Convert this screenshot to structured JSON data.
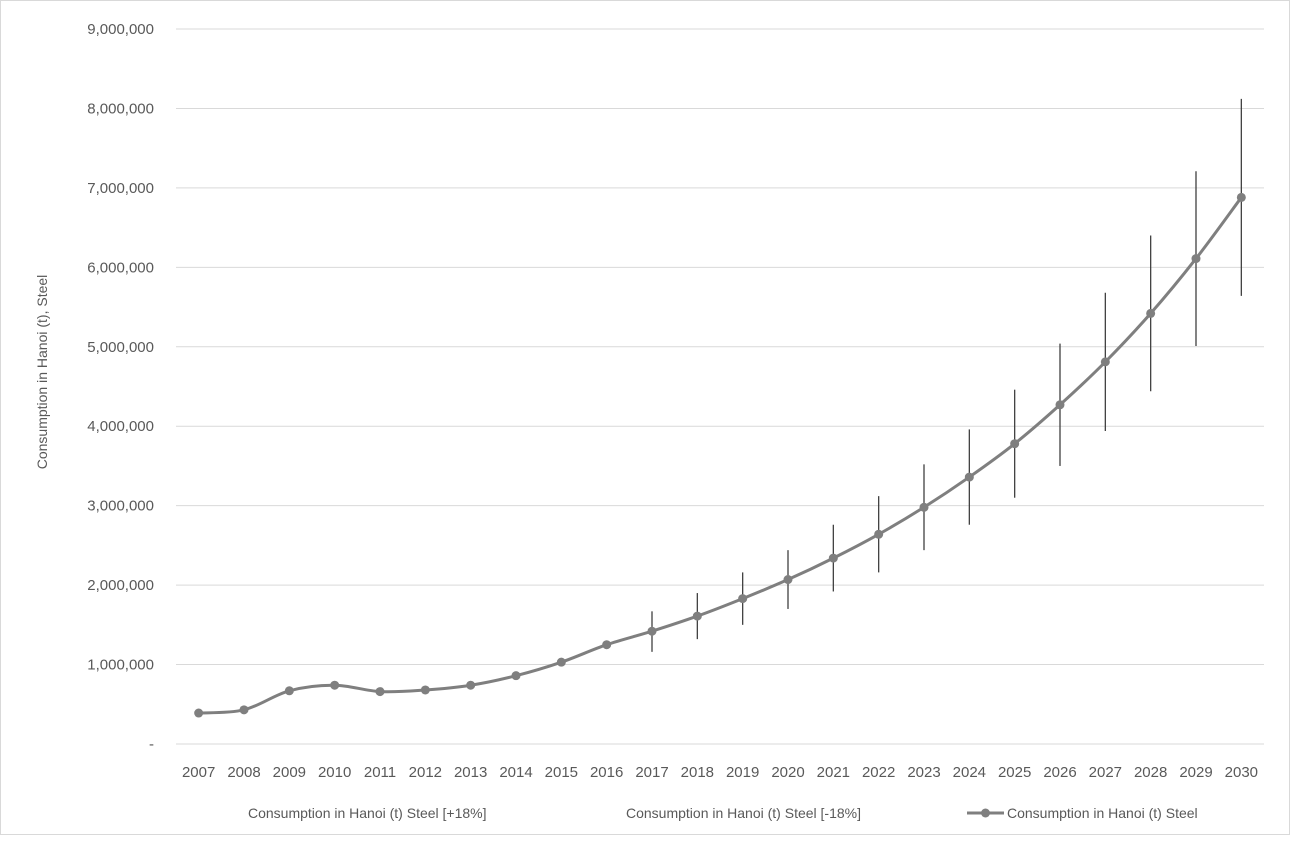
{
  "chart_data": {
    "type": "line",
    "title": "",
    "ylabel": "Consumption in Hanoi (t), Steel",
    "xlabel": "",
    "ylim": [
      0,
      9000000
    ],
    "y_ticks": [
      {
        "value": 0,
        "label": "-"
      },
      {
        "value": 1000000,
        "label": "1,000,000"
      },
      {
        "value": 2000000,
        "label": "2,000,000"
      },
      {
        "value": 3000000,
        "label": "3,000,000"
      },
      {
        "value": 4000000,
        "label": "4,000,000"
      },
      {
        "value": 5000000,
        "label": "5,000,000"
      },
      {
        "value": 6000000,
        "label": "6,000,000"
      },
      {
        "value": 7000000,
        "label": "7,000,000"
      },
      {
        "value": 8000000,
        "label": "8,000,000"
      },
      {
        "value": 9000000,
        "label": "9,000,000"
      }
    ],
    "categories": [
      "2007",
      "2008",
      "2009",
      "2010",
      "2011",
      "2012",
      "2013",
      "2014",
      "2015",
      "2016",
      "2017",
      "2018",
      "2019",
      "2020",
      "2021",
      "2022",
      "2023",
      "2024",
      "2025",
      "2026",
      "2027",
      "2028",
      "2029",
      "2030"
    ],
    "series": [
      {
        "name": "Consumption in Hanoi (t) Steel",
        "values": [
          390000,
          430000,
          670000,
          740000,
          660000,
          680000,
          740000,
          860000,
          1030000,
          1250000,
          1420000,
          1610000,
          1830000,
          2070000,
          2340000,
          2640000,
          2980000,
          3360000,
          3780000,
          4270000,
          4810000,
          5420000,
          6110000,
          6880000
        ],
        "color": "#7f7f7f"
      },
      {
        "name": "Consumption in Hanoi (t) Steel [+18%]",
        "values": [
          null,
          null,
          null,
          null,
          null,
          null,
          null,
          null,
          null,
          null,
          1670000,
          1900000,
          2160000,
          2440000,
          2760000,
          3120000,
          3520000,
          3960000,
          4460000,
          5040000,
          5680000,
          6400000,
          7210000,
          8120000
        ]
      },
      {
        "name": "Consumption in Hanoi (t) Steel  [-18%]",
        "values": [
          null,
          null,
          null,
          null,
          null,
          null,
          null,
          null,
          null,
          null,
          1160000,
          1320000,
          1500000,
          1700000,
          1920000,
          2160000,
          2440000,
          2760000,
          3100000,
          3500000,
          3940000,
          4440000,
          5010000,
          5640000
        ]
      }
    ],
    "grid": true,
    "legend_position": "bottom"
  }
}
